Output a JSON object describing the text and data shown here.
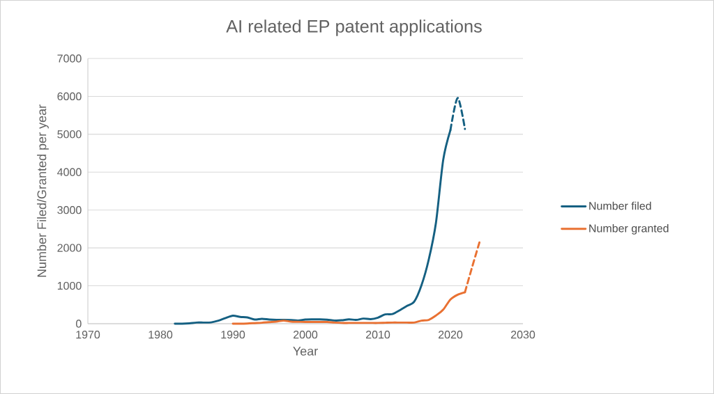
{
  "chart_data": {
    "type": "line",
    "title": "AI related EP patent applications",
    "xlabel": "Year",
    "ylabel": "Number Filed/Granted per year",
    "xlim": [
      1970,
      2030
    ],
    "xticks": [
      1970,
      1980,
      1990,
      2000,
      2010,
      2020,
      2030
    ],
    "ylim": [
      0,
      7000
    ],
    "yticks": [
      0,
      1000,
      2000,
      3000,
      4000,
      5000,
      6000,
      7000
    ],
    "grid": "y",
    "legend": "right",
    "marker": "none",
    "series": [
      {
        "name": "Number filed",
        "color": "#156082",
        "line_style": "solid",
        "x": [
          1982,
          1983,
          1984,
          1985,
          1986,
          1987,
          1988,
          1989,
          1990,
          1991,
          1992,
          1993,
          1994,
          1995,
          1996,
          1997,
          1998,
          1999,
          2000,
          2001,
          2002,
          2003,
          2004,
          2005,
          2006,
          2007,
          2008,
          2009,
          2010,
          2011,
          2012,
          2013,
          2014,
          2015,
          2016,
          2017,
          2018,
          2019,
          2020
        ],
        "values": [
          0,
          0,
          10,
          30,
          30,
          35,
          80,
          150,
          210,
          180,
          165,
          110,
          130,
          110,
          100,
          100,
          95,
          85,
          110,
          115,
          115,
          105,
          85,
          90,
          115,
          100,
          135,
          120,
          160,
          245,
          255,
          355,
          470,
          580,
          1010,
          1685,
          2660,
          4320,
          5110
        ]
      },
      {
        "color": "#156082",
        "line_style": "dashed",
        "x": [
          2020,
          2021,
          2022
        ],
        "values": [
          5110,
          5960,
          5140
        ]
      },
      {
        "name": "Number granted",
        "color": "#E97132",
        "line_style": "solid",
        "x": [
          1990,
          1991,
          1992,
          1993,
          1994,
          1995,
          1996,
          1997,
          1998,
          1999,
          2000,
          2001,
          2002,
          2003,
          2004,
          2005,
          2006,
          2007,
          2008,
          2009,
          2010,
          2011,
          2012,
          2013,
          2014,
          2015,
          2016,
          2017,
          2018,
          2019,
          2020,
          2021,
          2022
        ],
        "values": [
          0,
          0,
          5,
          15,
          25,
          40,
          55,
          80,
          55,
          50,
          45,
          45,
          45,
          45,
          30,
          20,
          20,
          20,
          20,
          20,
          20,
          25,
          30,
          30,
          30,
          30,
          80,
          100,
          215,
          370,
          640,
          765,
          830
        ]
      },
      {
        "color": "#E97132",
        "line_style": "dashed",
        "x": [
          2022,
          2023,
          2024
        ],
        "values": [
          830,
          1500,
          2145
        ]
      }
    ]
  }
}
